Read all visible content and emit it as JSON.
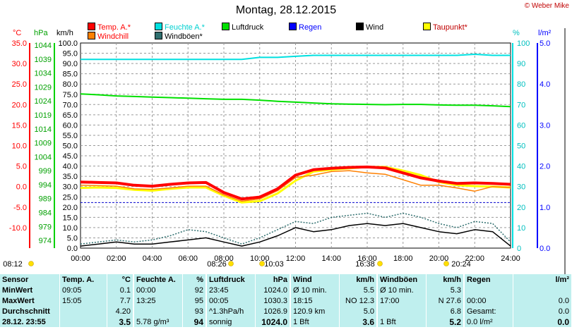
{
  "title": "Montag, 28.12.2015",
  "copyright": "© Weber Mike",
  "legend": [
    {
      "label": "Temp. A.*",
      "color": "#ff0000"
    },
    {
      "label": "Feuchte A.*",
      "color": "#00e0e0"
    },
    {
      "label": "Luftdruck",
      "color": "#00e000"
    },
    {
      "label": "Regen",
      "color": "#0000ff"
    },
    {
      "label": "Wind",
      "color": "#000000"
    },
    {
      "label": "Taupunkt*",
      "color": "#ffff00"
    },
    {
      "label": "Windchill",
      "color": "#ff8000"
    },
    {
      "label": "Windböen*",
      "color": "#2f6f6f"
    }
  ],
  "axis_units": {
    "temp": "°C",
    "pressure": "hPa",
    "wind": "km/h",
    "humidity": "%",
    "rain": "l/m²"
  },
  "chart_data": {
    "type": "line",
    "x_ticks": [
      "00:00",
      "02:00",
      "04:00",
      "06:00",
      "08:00",
      "10:00",
      "12:00",
      "14:00",
      "16:00",
      "18:00",
      "20:00",
      "22:00",
      "24:00"
    ],
    "y_temp_ticks": [
      "35.0",
      "30.0",
      "25.0",
      "20.0",
      "15.0",
      "10.0",
      "5.0",
      "0.0",
      "-5.0",
      "-10.0"
    ],
    "y_pressure_ticks": [
      "1044",
      "1039",
      "1034",
      "1029",
      "1024",
      "1019",
      "1014",
      "1009",
      "1004",
      "999",
      "994",
      "989",
      "984",
      "979",
      "974"
    ],
    "y_wind_ticks": [
      "100.0",
      "95.0",
      "90.0",
      "85.0",
      "80.0",
      "75.0",
      "70.0",
      "65.0",
      "60.0",
      "55.0",
      "50.0",
      "45.0",
      "40.0",
      "35.0",
      "30.0",
      "25.0",
      "20.0",
      "15.0",
      "10.0",
      "5.0",
      "0.0"
    ],
    "y_humidity_ticks": [
      "100",
      "90",
      "80",
      "70",
      "60",
      "50",
      "40",
      "30",
      "20",
      "10",
      "0"
    ],
    "y_rain_ticks": [
      "5.0",
      "4.0",
      "3.0",
      "2.0",
      "1.0",
      "0.0"
    ],
    "ranges": {
      "temp": [
        -10,
        35
      ],
      "pressure": [
        974,
        1046.5
      ],
      "wind": [
        0,
        100
      ],
      "humidity": [
        0,
        100
      ],
      "rain": [
        0,
        5
      ]
    },
    "grid": true,
    "x_hours": [
      0,
      1,
      2,
      3,
      4,
      5,
      6,
      7,
      8,
      9,
      10,
      11,
      12,
      13,
      14,
      15,
      16,
      17,
      18,
      19,
      20,
      21,
      22,
      23,
      24
    ],
    "series": [
      {
        "name": "Feuchte A.*",
        "axis": "humidity",
        "color": "#00e0e0",
        "values": [
          92,
          92,
          92,
          92,
          92,
          92,
          92,
          92,
          92,
          92,
          93,
          93,
          93.5,
          94,
          94,
          94,
          94,
          94,
          94,
          94,
          94,
          94,
          94.5,
          94,
          94
        ]
      },
      {
        "name": "Luftdruck",
        "axis": "pressure",
        "color": "#00e000",
        "values": [
          1028.5,
          1028.2,
          1027.8,
          1027.6,
          1027.4,
          1027.2,
          1027.0,
          1026.8,
          1026.6,
          1026.6,
          1026.3,
          1025.9,
          1025.6,
          1025.3,
          1025.0,
          1024.9,
          1024.8,
          1024.7,
          1024.8,
          1024.8,
          1024.6,
          1024.5,
          1024.5,
          1024.3,
          1024.0
        ]
      },
      {
        "name": "Wind",
        "axis": "wind",
        "color": "#000000",
        "values": [
          1,
          2,
          3,
          2,
          2,
          3,
          4,
          5,
          3,
          1,
          3,
          6,
          10,
          8,
          9,
          11,
          12,
          11,
          12,
          10,
          8,
          7,
          9,
          8,
          1
        ]
      },
      {
        "name": "Windböen*",
        "axis": "wind",
        "color": "#2f6f6f",
        "values": [
          2,
          3,
          4,
          3,
          4,
          6,
          9,
          8,
          5,
          2,
          5,
          9,
          13,
          12,
          15,
          16,
          17,
          15,
          17,
          15,
          12,
          10,
          13,
          12,
          3
        ]
      },
      {
        "name": "Taupunkt*",
        "axis": "temp",
        "color": "#ffff00",
        "values": [
          3.2,
          3.3,
          3.2,
          2.8,
          2.6,
          3.0,
          3.3,
          3.3,
          1.5,
          0.0,
          0.3,
          2.0,
          4.8,
          6.8,
          7.2,
          7.5,
          7.8,
          7.8,
          7.0,
          6.0,
          4.5,
          3.8,
          3.6,
          3.5,
          3.3
        ]
      },
      {
        "name": "Windchill",
        "axis": "temp",
        "color": "#ff8000",
        "values": [
          3.8,
          3.7,
          3.6,
          3.0,
          2.9,
          3.2,
          3.6,
          3.6,
          1.7,
          0.3,
          0.8,
          2.6,
          5.5,
          6.0,
          6.8,
          7.0,
          6.5,
          6.2,
          5.0,
          3.8,
          3.8,
          3.2,
          2.5,
          3.5,
          3.3
        ]
      },
      {
        "name": "Temp. A.*",
        "axis": "temp",
        "color": "#ff0000",
        "values": [
          4.5,
          4.4,
          4.3,
          3.8,
          3.6,
          4.0,
          4.3,
          4.4,
          2.2,
          0.8,
          1.2,
          3.0,
          6.0,
          7.2,
          7.5,
          7.7,
          7.8,
          7.6,
          6.5,
          5.4,
          4.7,
          4.2,
          4.3,
          4.2,
          4.0
        ]
      }
    ],
    "time_markers": [
      "08:12",
      "08:26",
      "10:03",
      "16:38",
      "20:24"
    ]
  },
  "stats": {
    "headers": [
      "Sensor",
      "Temp. A.",
      "°C",
      "Feuchte A.",
      "%",
      "Luftdruck",
      "hPa",
      "Wind",
      "km/h",
      "Windböen",
      "km/h",
      "Regen",
      "l/m²"
    ],
    "min": {
      "label": "MinWert",
      "temp_time": "09:05",
      "temp": "0.1",
      "hum_time": "00:00",
      "hum": "92",
      "press_time": "23:45",
      "press": "1024.0",
      "wind_desc": "Ø 10 min.",
      "wind": "5.5",
      "gust_desc": "Ø 10 min.",
      "gust": "5.3",
      "rain_desc": "",
      "rain": ""
    },
    "max": {
      "label": "MaxWert",
      "temp_time": "15:05",
      "temp": "7.7",
      "hum_time": "13:25",
      "hum": "95",
      "press_time": "00:05",
      "press": "1030.3",
      "wind_desc": "18:15",
      "wind": "NO 12.3",
      "gust_desc": "17:00",
      "gust": "N 27.6",
      "rain_desc": "00:00",
      "rain": "0.0"
    },
    "avg": {
      "label": "Durchschnitt",
      "temp_time": "",
      "temp": "4.20",
      "hum_time": "",
      "hum": "93",
      "press_time": "^1.3hPa/h",
      "press": "1026.9",
      "wind_desc": "120.9 km",
      "wind": "5.0",
      "gust_desc": "",
      "gust": "6.8",
      "rain_desc": "Gesamt:",
      "rain": "0.0"
    },
    "cur": {
      "label": "28.12. 23:55",
      "temp_time": "",
      "temp": "3.5",
      "hum_time": "5.78 g/m³",
      "hum": "94",
      "press_time": "sonnig",
      "press": "1024.0",
      "wind_desc": "1 Bft",
      "wind": "3.6",
      "gust_desc": "1 Bft",
      "gust": "5.2",
      "rain_desc": "0.0 l/m²",
      "rain": "0.0"
    }
  }
}
